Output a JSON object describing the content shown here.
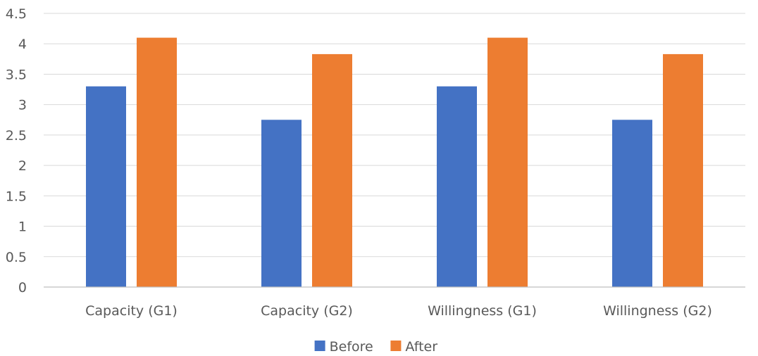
{
  "chart_data": {
    "type": "bar",
    "categories": [
      "Capacity (G1)",
      "Capacity (G2)",
      "Willingness (G1)",
      "Willingness (G2)"
    ],
    "series": [
      {
        "name": "Before",
        "values": [
          3.3,
          2.75,
          3.3,
          2.75
        ],
        "color": "#4472C4"
      },
      {
        "name": "After",
        "values": [
          4.1,
          3.83,
          4.1,
          3.83
        ],
        "color": "#ED7D31"
      }
    ],
    "yticks": [
      "0",
      "0.5",
      "1",
      "1.5",
      "2",
      "2.5",
      "3",
      "3.5",
      "4",
      "4.5"
    ],
    "ylim": [
      0,
      4.5
    ],
    "grid": true,
    "gridline_color": "#D9D9D9",
    "axis_color": "#BFBFBF",
    "text_color": "#595959",
    "legend_position": "bottom",
    "title": "",
    "xlabel": "",
    "ylabel": ""
  }
}
